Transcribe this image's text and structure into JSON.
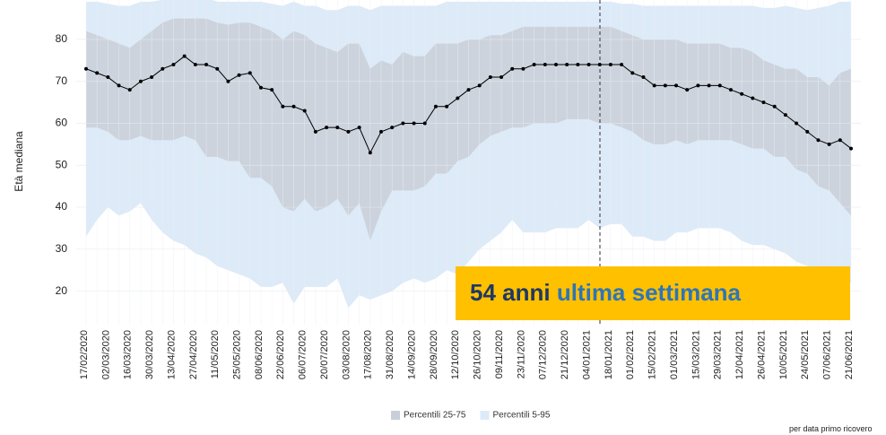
{
  "chart_data": {
    "type": "line",
    "y_label": "Età mediana",
    "categories": [
      "17/02/2020",
      null,
      "02/03/2020",
      null,
      "16/03/2020",
      null,
      "30/03/2020",
      null,
      "13/04/2020",
      null,
      "27/04/2020",
      null,
      "11/05/2020",
      null,
      "25/05/2020",
      null,
      "08/06/2020",
      null,
      "22/06/2020",
      null,
      "06/07/2020",
      null,
      "20/07/2020",
      null,
      "03/08/2020",
      null,
      "17/08/2020",
      null,
      "31/08/2020",
      null,
      "14/09/2020",
      null,
      "28/09/2020",
      null,
      "12/10/2020",
      null,
      "26/10/2020",
      null,
      "09/11/2020",
      null,
      "23/11/2020",
      null,
      "07/12/2020",
      null,
      "21/12/2020",
      null,
      "04/01/2021",
      null,
      "18/01/2021",
      null,
      "01/02/2021",
      null,
      "15/02/2021",
      null,
      "01/03/2021",
      null,
      "15/03/2021",
      null,
      "29/03/2021",
      null,
      "12/04/2021",
      null,
      "26/04/2021",
      null,
      "10/05/2021",
      null,
      "24/05/2021",
      null,
      "07/06/2021",
      null,
      "21/06/2021"
    ],
    "line": {
      "color": "#000000",
      "values": [
        73,
        72,
        71,
        69,
        68,
        70,
        71,
        73,
        74,
        76,
        74,
        74,
        73,
        70,
        71.5,
        72,
        68.5,
        68,
        64,
        64,
        63,
        58,
        59,
        59,
        58,
        59,
        53,
        58,
        59,
        60,
        60,
        60,
        64,
        64,
        66,
        68,
        69,
        71,
        71,
        73,
        73,
        74,
        74,
        74,
        74,
        74,
        74,
        74,
        74,
        74,
        72,
        71,
        69,
        69,
        69,
        68,
        69,
        69,
        69,
        68,
        67,
        66,
        65,
        64,
        62,
        60,
        58,
        56,
        55,
        56,
        54
      ]
    },
    "bands": [
      {
        "name": "Percentili 5-95",
        "color": "#ddeaf8",
        "lower": [
          33,
          37,
          40,
          38,
          39,
          41,
          37,
          34,
          32,
          31,
          29,
          28,
          26,
          25,
          24,
          23,
          21,
          21,
          22,
          17,
          21,
          21,
          21,
          23,
          16,
          19,
          18,
          19,
          20,
          22,
          23,
          22,
          23,
          25,
          24,
          27,
          30,
          32,
          34,
          37,
          34,
          34,
          34,
          35,
          35,
          35,
          37,
          35,
          36,
          36,
          33,
          33,
          32,
          32,
          34,
          34,
          35,
          35,
          35,
          34,
          32,
          31,
          31,
          30,
          29,
          27,
          26,
          25,
          24,
          22,
          22
        ],
        "upper": [
          89,
          89,
          88.5,
          88,
          88,
          89,
          89,
          89.5,
          90,
          90,
          90,
          90,
          89,
          89,
          89,
          89,
          89,
          88.5,
          88,
          89,
          88,
          88,
          87,
          87,
          88,
          88,
          87,
          88,
          88,
          88,
          88,
          88,
          88,
          89,
          89,
          89,
          89,
          89,
          89,
          89,
          89,
          89,
          89,
          89,
          89,
          89,
          89,
          89,
          89,
          88.5,
          88.5,
          88,
          88,
          88,
          88,
          88,
          88,
          88,
          88,
          88,
          88,
          88,
          87.5,
          87.5,
          88,
          87.5,
          87,
          87.5,
          88,
          89,
          89
        ]
      },
      {
        "name": "Percentili 25-75",
        "color": "#c9cfd8",
        "lower": [
          59,
          59,
          58,
          56,
          56,
          57,
          56,
          56,
          56,
          57,
          56,
          52,
          52,
          51,
          51,
          47,
          47,
          45,
          40,
          39,
          42,
          39,
          40,
          42,
          38,
          41,
          32,
          39,
          44,
          44,
          44,
          45,
          48,
          48,
          51,
          52,
          55,
          57,
          58,
          59,
          59,
          60,
          60,
          60,
          61,
          61,
          61,
          60,
          60,
          59,
          58,
          56,
          55,
          55,
          56,
          55,
          56,
          56,
          56,
          56,
          55,
          54,
          54,
          52,
          52,
          49,
          48,
          45,
          44,
          41,
          38
        ],
        "upper": [
          82,
          81,
          80,
          79,
          78,
          80,
          82,
          84,
          85,
          85,
          85,
          85,
          84,
          83.5,
          84,
          84,
          83,
          82,
          80,
          82,
          81,
          79,
          78,
          77,
          79,
          79,
          73,
          75,
          74,
          77,
          76,
          76,
          79,
          79,
          79,
          80,
          80,
          81,
          81,
          82,
          83,
          83,
          83,
          83,
          83,
          83,
          83,
          83,
          83,
          82,
          81,
          80,
          80,
          80,
          80,
          79,
          79,
          79,
          79,
          78,
          78,
          77,
          75,
          74,
          73,
          73,
          71,
          71,
          69,
          72,
          73
        ]
      }
    ],
    "ylim": [
      12,
      89.4
    ],
    "yticks": [
      20,
      30,
      40,
      50,
      60,
      70,
      80
    ],
    "grid": true,
    "legend": [
      "Percentili 25-75",
      "Percentili 5-95"
    ],
    "annotation": {
      "part1": "54 anni",
      "part2": "ultima settimana",
      "color1": "#1f3864",
      "color2": "#2e75b6",
      "box_color": "#ffc000"
    },
    "note": "per data primo ricovero"
  }
}
